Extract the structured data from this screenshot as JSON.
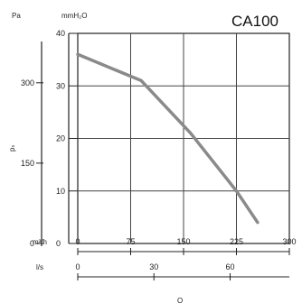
{
  "model": "CA100",
  "chart_data": {
    "type": "line",
    "title": "CA100",
    "xlabel": "",
    "ylabel": "",
    "left_outer_axis": {
      "unit": "Pa",
      "ylabel": "pₛ",
      "ticks": [
        {
          "value": 0,
          "label": "0"
        },
        {
          "value": 150,
          "label": "150"
        },
        {
          "value": 300,
          "label": "300"
        }
      ]
    },
    "left_inner_axis": {
      "unit": "mmH₂O",
      "ylim": [
        0,
        40
      ],
      "ticks": [
        0,
        10,
        20,
        30,
        40
      ]
    },
    "x_primary": {
      "unit": "m³/h",
      "xlim": [
        0,
        300
      ],
      "ticks": [
        0,
        75,
        150,
        225,
        300
      ]
    },
    "x_secondary": {
      "unit": "l/s",
      "ticks": [
        {
          "label": "0",
          "m3h": 0
        },
        {
          "label": "30",
          "m3h": 108
        },
        {
          "label": "60",
          "m3h": 216
        }
      ],
      "label_partial": "Q"
    },
    "grid": true,
    "series": [
      {
        "color": "#8a8a8a",
        "x": [
          0,
          90,
          160,
          225,
          255
        ],
        "y": [
          36,
          31,
          21,
          10,
          4
        ]
      }
    ]
  }
}
